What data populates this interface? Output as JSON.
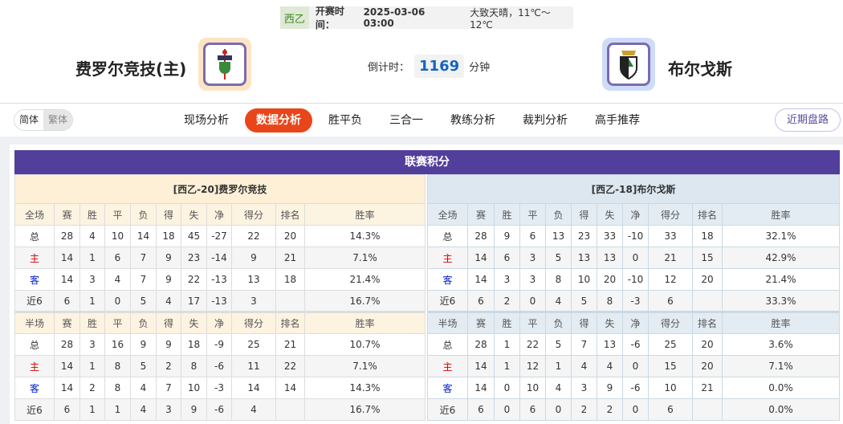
{
  "match": {
    "league": "西乙",
    "time_label": "开赛时间：",
    "time": "2025-03-06 03:00",
    "weather": "大致天晴，11℃～12℃"
  },
  "home": {
    "name": "费罗尔竞技(主)",
    "logo": "racing-ferrol-crest"
  },
  "away": {
    "name": "布尔戈斯",
    "logo": "burgos-crest"
  },
  "countdown": {
    "label": "倒计时：",
    "value": "1169",
    "unit": "分钟"
  },
  "nav": {
    "lang": [
      "简体",
      "繁体"
    ],
    "tabs": [
      "现场分析",
      "数据分析",
      "胜平负",
      "三合一",
      "教练分析",
      "裁判分析",
      "高手推荐"
    ],
    "active": "数据分析",
    "recent": "近期盘路"
  },
  "standings": {
    "title": "联赛积分",
    "columns_full": [
      "全场",
      "赛",
      "胜",
      "平",
      "负",
      "得",
      "失",
      "净",
      "得分",
      "排名",
      "胜率"
    ],
    "columns_half": [
      "半场",
      "赛",
      "胜",
      "平",
      "负",
      "得",
      "失",
      "净",
      "得分",
      "排名",
      "胜率"
    ],
    "home": {
      "caption": "[西乙-20]费罗尔竞技",
      "full": [
        [
          "总",
          "28",
          "4",
          "10",
          "14",
          "18",
          "45",
          "-27",
          "22",
          "20",
          "14.3%"
        ],
        [
          "主",
          "14",
          "1",
          "6",
          "7",
          "9",
          "23",
          "-14",
          "9",
          "21",
          "7.1%"
        ],
        [
          "客",
          "14",
          "3",
          "4",
          "7",
          "9",
          "22",
          "-13",
          "13",
          "18",
          "21.4%"
        ],
        [
          "近6",
          "6",
          "1",
          "0",
          "5",
          "4",
          "17",
          "-13",
          "3",
          "",
          "16.7%"
        ]
      ],
      "half": [
        [
          "总",
          "28",
          "3",
          "16",
          "9",
          "9",
          "18",
          "-9",
          "25",
          "21",
          "10.7%"
        ],
        [
          "主",
          "14",
          "1",
          "8",
          "5",
          "2",
          "8",
          "-6",
          "11",
          "22",
          "7.1%"
        ],
        [
          "客",
          "14",
          "2",
          "8",
          "4",
          "7",
          "10",
          "-3",
          "14",
          "14",
          "14.3%"
        ],
        [
          "近6",
          "6",
          "1",
          "1",
          "4",
          "3",
          "9",
          "-6",
          "4",
          "",
          "16.7%"
        ]
      ]
    },
    "away": {
      "caption": "[西乙-18]布尔戈斯",
      "full": [
        [
          "总",
          "28",
          "9",
          "6",
          "13",
          "23",
          "33",
          "-10",
          "33",
          "18",
          "32.1%"
        ],
        [
          "主",
          "14",
          "6",
          "3",
          "5",
          "13",
          "13",
          "0",
          "21",
          "15",
          "42.9%"
        ],
        [
          "客",
          "14",
          "3",
          "3",
          "8",
          "10",
          "20",
          "-10",
          "12",
          "20",
          "21.4%"
        ],
        [
          "近6",
          "6",
          "2",
          "0",
          "4",
          "5",
          "8",
          "-3",
          "6",
          "",
          "33.3%"
        ]
      ],
      "half": [
        [
          "总",
          "28",
          "1",
          "22",
          "5",
          "7",
          "13",
          "-6",
          "25",
          "20",
          "3.6%"
        ],
        [
          "主",
          "14",
          "1",
          "12",
          "1",
          "4",
          "4",
          "0",
          "15",
          "20",
          "7.1%"
        ],
        [
          "客",
          "14",
          "0",
          "10",
          "4",
          "3",
          "9",
          "-6",
          "10",
          "21",
          "0.0%"
        ],
        [
          "近6",
          "6",
          "0",
          "6",
          "0",
          "2",
          "2",
          "0",
          "6",
          "",
          "0.0%"
        ]
      ]
    }
  }
}
